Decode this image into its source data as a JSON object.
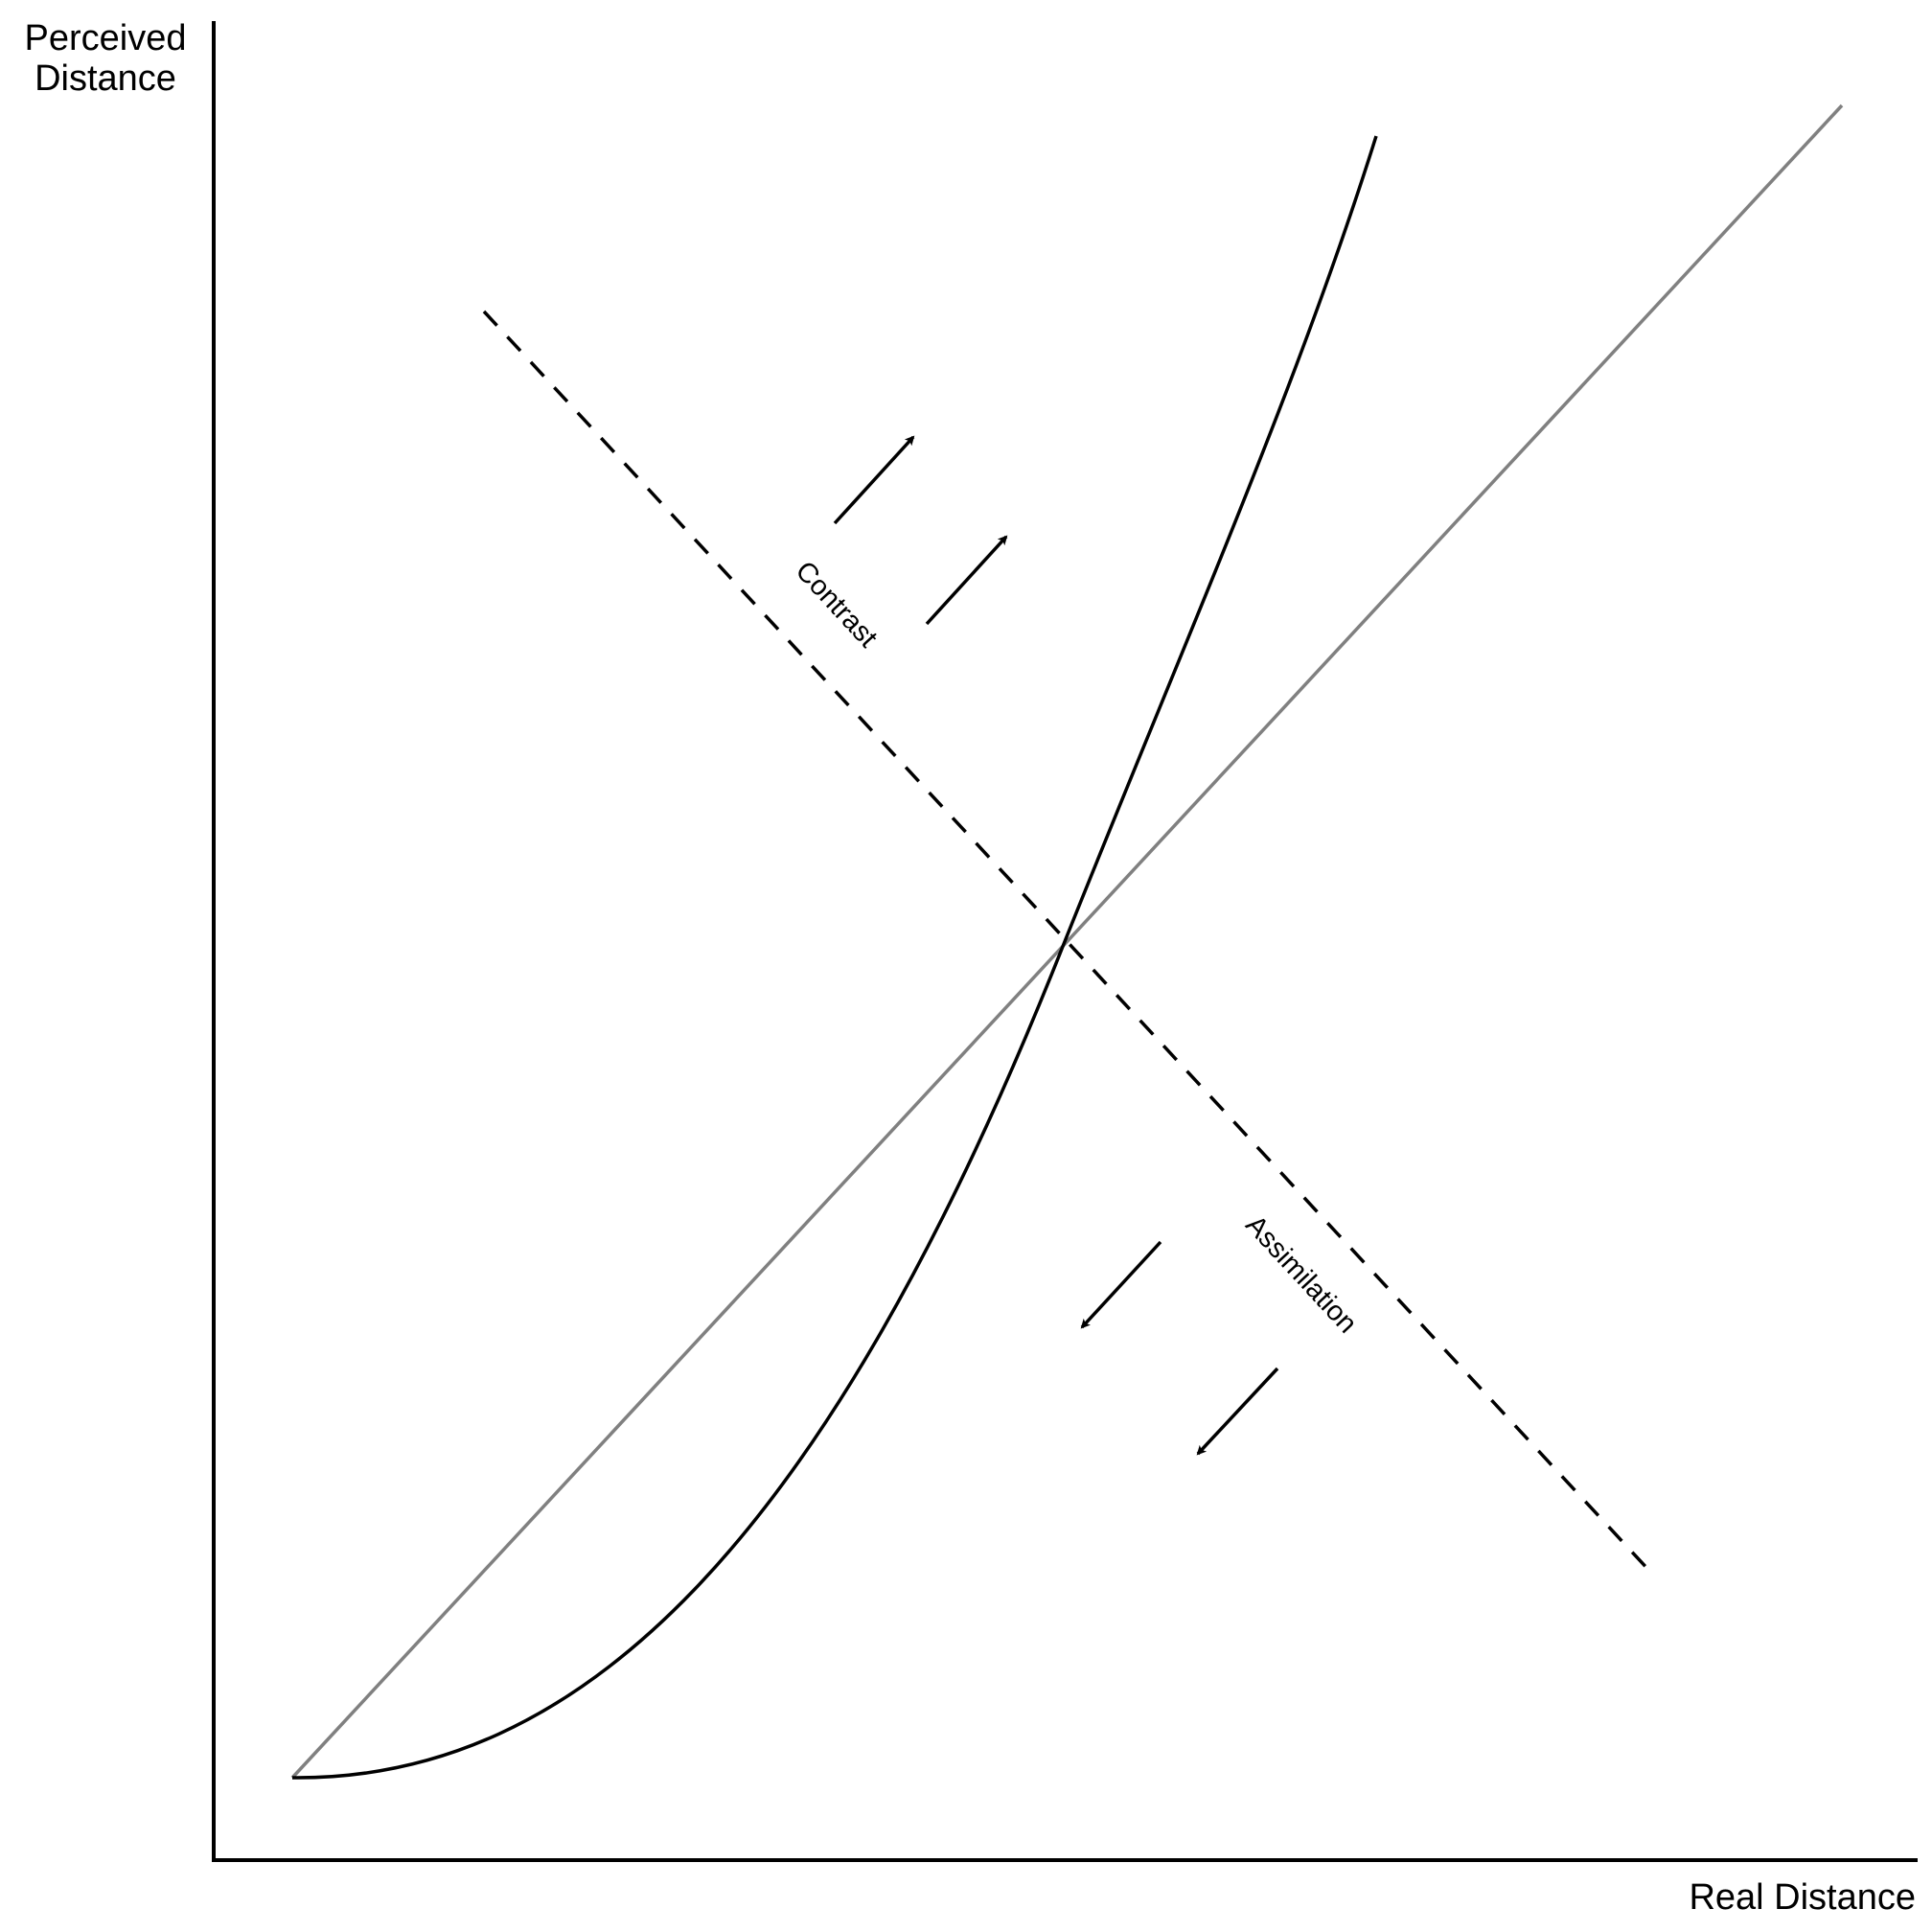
{
  "axes": {
    "y_label_line1": "Perceived",
    "y_label_line2": "Distance",
    "x_label": "Real Distance"
  },
  "regions": {
    "contrast_label": "Contrast",
    "assimilation_label": "Assimilation"
  },
  "colors": {
    "axis": "#000000",
    "identity_line": "#808080",
    "curve": "#000000",
    "boundary": "#000000",
    "arrows": "#000000"
  },
  "arrow_groups": {
    "contrast_direction": "up-right",
    "assimilation_direction": "down-left"
  }
}
